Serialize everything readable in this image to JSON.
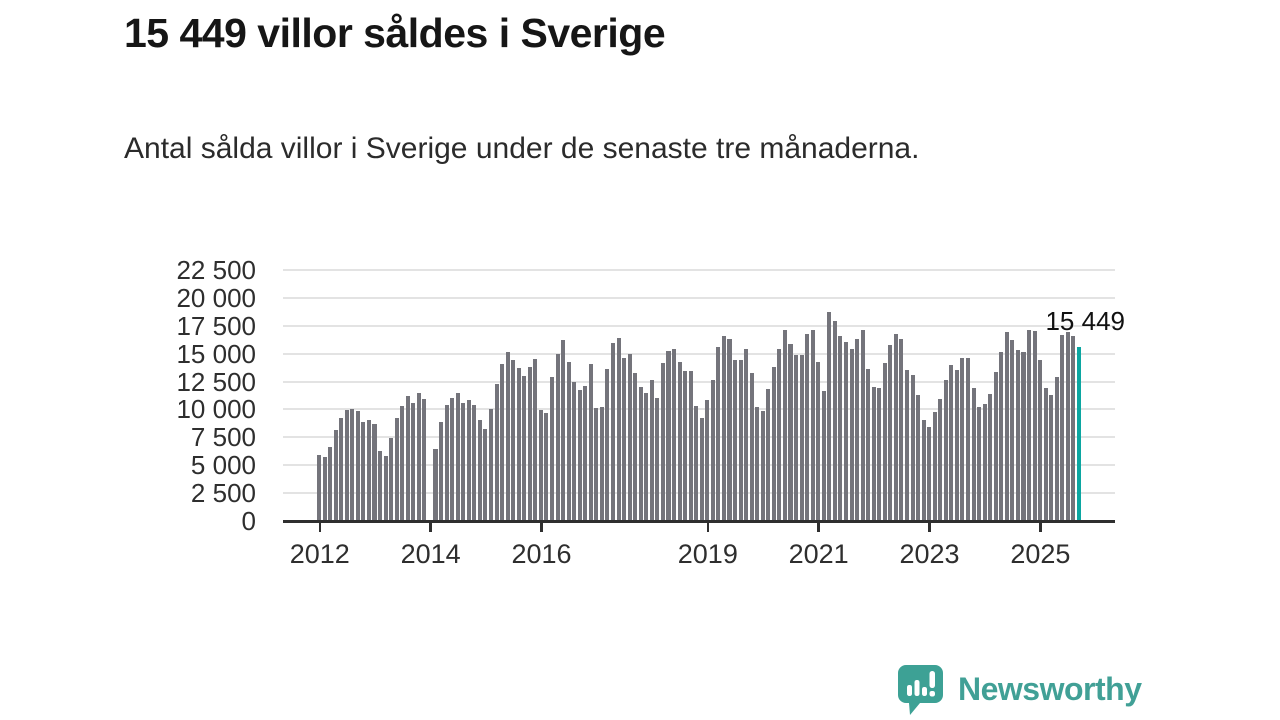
{
  "page": {
    "title": "15 449 villor såldes i Sverige",
    "subtitle": "Antal sålda villor i Sverige under de senaste tre månaderna."
  },
  "chart_data": {
    "type": "bar",
    "title": "15 449 villor såldes i Sverige",
    "subtitle": "Antal sålda villor i Sverige under de senaste tre månaderna.",
    "xlabel": "",
    "ylabel": "",
    "grid": true,
    "legend": "none",
    "ylim": [
      0,
      23200
    ],
    "y_ticks": [
      {
        "value": 0,
        "label": "0"
      },
      {
        "value": 2500,
        "label": "2 500"
      },
      {
        "value": 5000,
        "label": "5 000"
      },
      {
        "value": 7500,
        "label": "7 500"
      },
      {
        "value": 10000,
        "label": "10 000"
      },
      {
        "value": 12500,
        "label": "12 500"
      },
      {
        "value": 15000,
        "label": "15 000"
      },
      {
        "value": 17500,
        "label": "17 500"
      },
      {
        "value": 20000,
        "label": "20 000"
      },
      {
        "value": 22500,
        "label": "22 500"
      }
    ],
    "x_tick_labels": [
      {
        "label": "2012",
        "index": 0
      },
      {
        "label": "2014",
        "index": 20
      },
      {
        "label": "2016",
        "index": 40
      },
      {
        "label": "2019",
        "index": 70
      },
      {
        "label": "2021",
        "index": 90
      },
      {
        "label": "2023",
        "index": 110
      },
      {
        "label": "2025",
        "index": 130
      }
    ],
    "values": [
      5800,
      5600,
      6500,
      8050,
      9100,
      9800,
      9900,
      9700,
      8700,
      8900,
      8550,
      6100,
      5650,
      7300,
      9100,
      10150,
      11100,
      10450,
      11300,
      10800,
      null,
      6350,
      8700,
      10300,
      10850,
      11300,
      10400,
      10750,
      10300,
      8900,
      8100,
      9900,
      12100,
      13900,
      15000,
      14300,
      13600,
      12900,
      13700,
      14400,
      9800,
      9500,
      12800,
      14850,
      16050,
      14100,
      12300,
      11600,
      12000,
      13900,
      10000,
      10100,
      13500,
      15800,
      16300,
      14500,
      14800,
      13100,
      11900,
      11300,
      12500,
      10900,
      14000,
      15100,
      15250,
      14100,
      13300,
      13300,
      10200,
      9100,
      10700,
      12500,
      15500,
      16460,
      16160,
      14280,
      14280,
      15320,
      13170,
      10100,
      9700,
      11680,
      13700,
      15260,
      16970,
      15770,
      14720,
      14780,
      16580,
      16970,
      14150,
      11500,
      18550,
      17770,
      16460,
      15930,
      15320,
      16220,
      16970,
      13530,
      11900,
      11740,
      13980,
      15620,
      16660,
      16220,
      13380,
      12930,
      11140,
      8900,
      8330,
      9670,
      10840,
      12480,
      13830,
      13380,
      14430,
      14430,
      11740,
      10100,
      10390,
      11290,
      13230,
      15050,
      16840,
      16070,
      15170,
      15050,
      16970,
      16880,
      14280,
      11740,
      11140,
      12780,
      16520,
      16820,
      16460,
      15449
    ],
    "highlight_index": 137,
    "highlight_value": 15449,
    "annotation_label": "15 449",
    "bar_color": "#74747b",
    "highlight_color": "#0ba6a1",
    "gridline_color": "#e3e3e3",
    "axis_color": "#2f2f2f"
  },
  "logo": {
    "text": "Newsworthy",
    "color": "#41a096",
    "icon": "newsworthy-chart-bubble-icon"
  }
}
